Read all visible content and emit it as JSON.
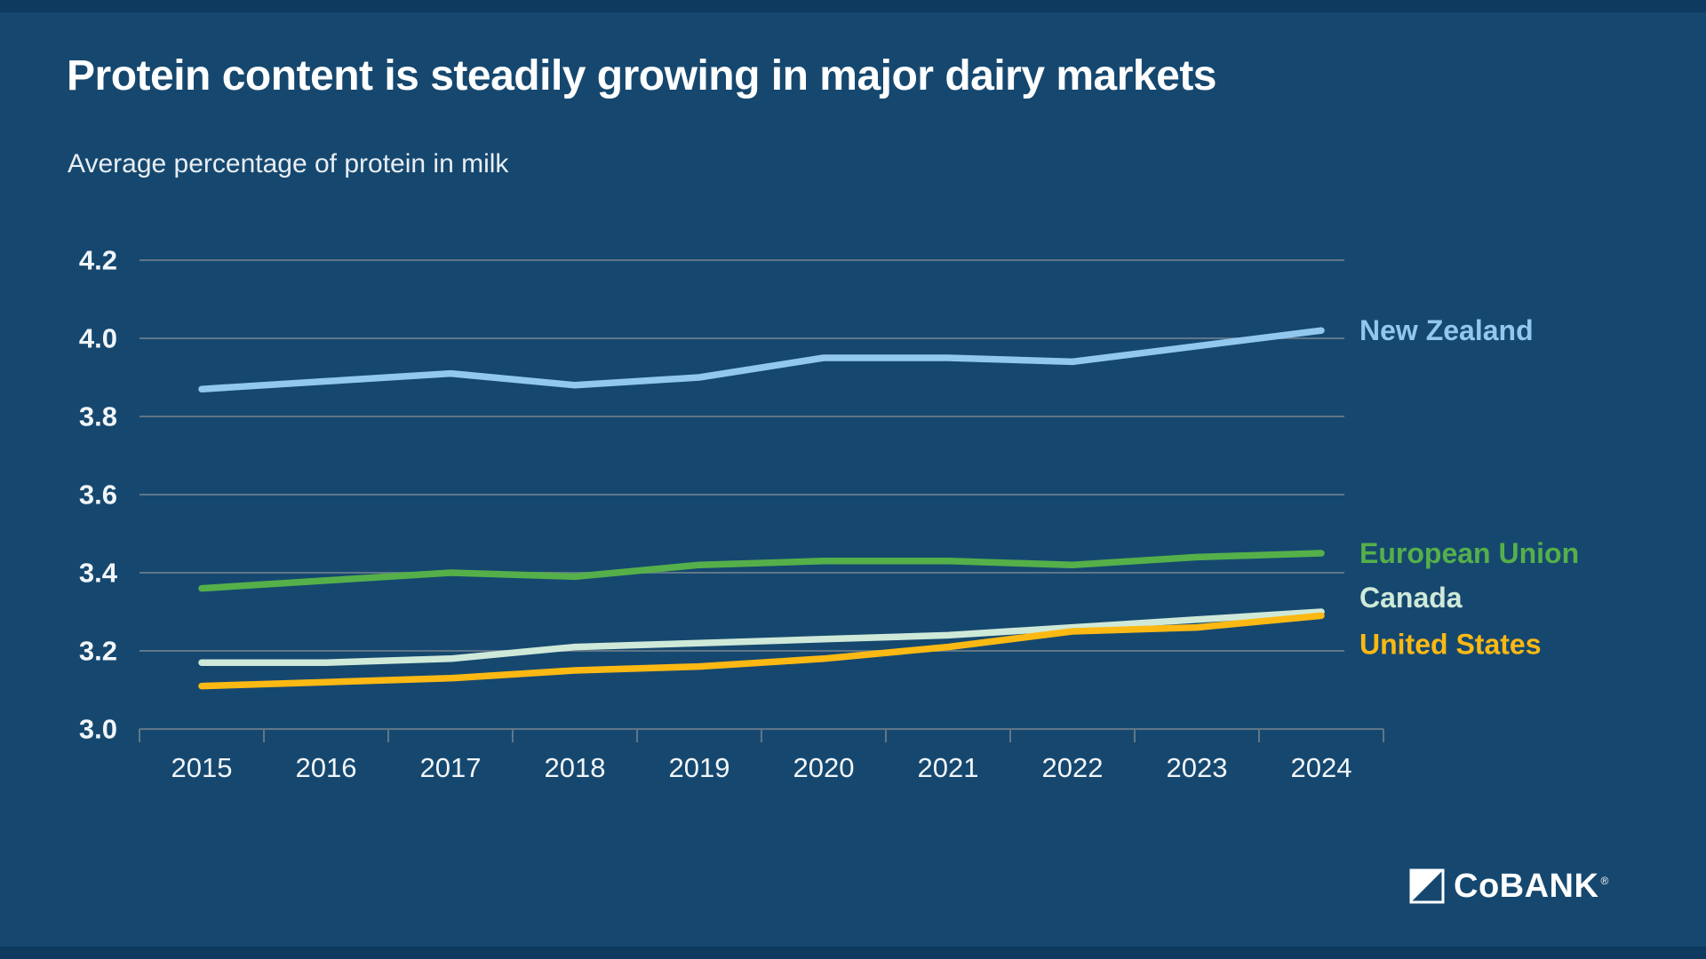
{
  "header": {
    "title": "Protein content is steadily growing in major dairy markets",
    "subtitle": "Average percentage of protein in milk"
  },
  "chart_data": {
    "type": "line",
    "x": [
      "2015",
      "2016",
      "2017",
      "2018",
      "2019",
      "2020",
      "2021",
      "2022",
      "2023",
      "2024"
    ],
    "series": [
      {
        "name": "New Zealand",
        "color": "#92C8EE",
        "values": [
          3.87,
          3.89,
          3.91,
          3.88,
          3.9,
          3.95,
          3.95,
          3.94,
          3.98,
          4.02
        ]
      },
      {
        "name": "European Union",
        "color": "#55B04A",
        "values": [
          3.36,
          3.38,
          3.4,
          3.39,
          3.42,
          3.43,
          3.43,
          3.42,
          3.44,
          3.45
        ]
      },
      {
        "name": "Canada",
        "color": "#CFE9D9",
        "values": [
          3.17,
          3.17,
          3.18,
          3.21,
          3.22,
          3.23,
          3.24,
          3.26,
          3.28,
          3.3
        ]
      },
      {
        "name": "United States",
        "color": "#FDB913",
        "values": [
          3.11,
          3.12,
          3.13,
          3.15,
          3.16,
          3.18,
          3.21,
          3.25,
          3.26,
          3.29
        ]
      }
    ],
    "ylim": [
      3.0,
      4.2
    ],
    "ytick_labels": [
      "3.0",
      "3.2",
      "3.4",
      "3.6",
      "3.8",
      "4.0",
      "4.2"
    ],
    "grid": "horizontal gridlines on, vertical off",
    "legend_position": "labels at right ends of lines"
  },
  "colors": {
    "background": "#16486F",
    "edge_band": "#0D3A5E",
    "gridline": "#607687",
    "axis_text": "#F2F6F9",
    "title_text": "#FFFFFF",
    "subtitle_text": "#E8EEF4"
  },
  "footer": {
    "logo_text": "CoBANK",
    "registered": "®"
  }
}
